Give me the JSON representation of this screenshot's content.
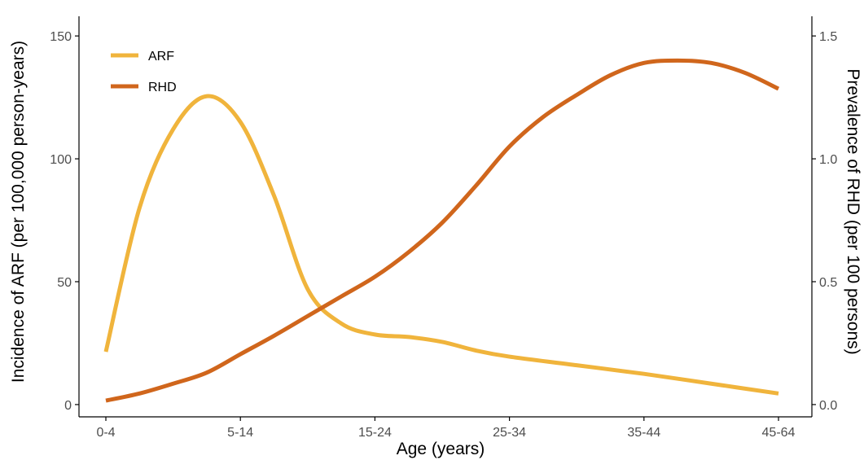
{
  "chart_data": {
    "type": "line",
    "categories": [
      "0-4",
      "5-14",
      "15-24",
      "25-34",
      "35-44",
      "45-64"
    ],
    "xlabel": "Age (years)",
    "ylabel_left": "Incidence of ARF (per 100,000 person-years)",
    "ylabel_right": "Prevalence of RHD (per 100 persons)",
    "left_ticks": [
      "0",
      "50",
      "100",
      "150"
    ],
    "right_ticks": [
      "0.0",
      "0.5",
      "1.0",
      "1.5"
    ],
    "ylim_left": [
      -5,
      158
    ],
    "ylim_right": [
      -0.05,
      1.58
    ],
    "grid": false,
    "legend_position": "top-left",
    "series": [
      {
        "name": "ARF",
        "axis": "left",
        "color": "#F0B43C",
        "x": [
          0,
          0.25,
          0.5,
          0.75,
          1,
          1.25,
          1.5,
          1.75,
          2,
          2.25,
          2.5,
          2.75,
          3,
          3.5,
          4,
          4.5,
          5
        ],
        "values": [
          21.5,
          80,
          112,
          125.5,
          115,
          85,
          47,
          33,
          28.5,
          27.5,
          25.5,
          22,
          19.5,
          16,
          12.5,
          8.5,
          4.5
        ]
      },
      {
        "name": "RHD",
        "axis": "right",
        "color": "#D0661C",
        "x": [
          0,
          0.25,
          0.5,
          0.75,
          1,
          1.25,
          1.5,
          1.75,
          2,
          2.25,
          2.5,
          2.75,
          3,
          3.25,
          3.5,
          3.75,
          4,
          4.25,
          4.5,
          4.75,
          5
        ],
        "values": [
          0.016,
          0.045,
          0.085,
          0.13,
          0.205,
          0.28,
          0.36,
          0.44,
          0.52,
          0.62,
          0.74,
          0.89,
          1.05,
          1.17,
          1.26,
          1.34,
          1.39,
          1.4,
          1.39,
          1.35,
          1.285
        ]
      }
    ]
  }
}
